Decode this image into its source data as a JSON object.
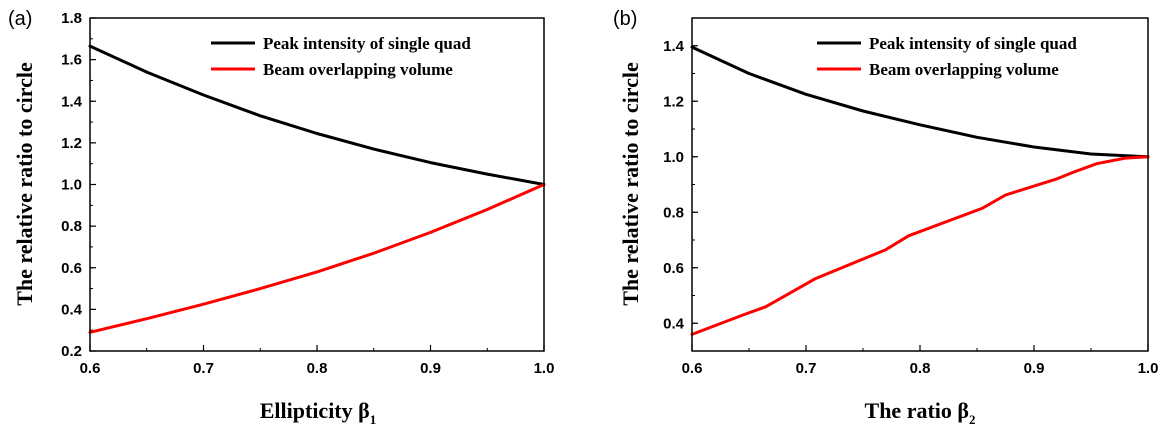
{
  "chart_data": [
    {
      "panel_label": "(a)",
      "type": "line",
      "xlabel": "Ellipticity β",
      "xlabel_sub": "1",
      "ylabel": "The relative ratio to circle",
      "xlim": [
        0.6,
        1.0
      ],
      "ylim": [
        0.2,
        1.8
      ],
      "xticks": [
        "0.6",
        "0.7",
        "0.8",
        "0.9",
        "1.0"
      ],
      "yticks": [
        "0.2",
        "0.4",
        "0.6",
        "0.8",
        "1.0",
        "1.2",
        "1.4",
        "1.6",
        "1.8"
      ],
      "legend_position": "top-right",
      "grid": false,
      "series": [
        {
          "name": "Peak intensity of single quad",
          "color": "#000000",
          "x": [
            0.6,
            0.65,
            0.7,
            0.75,
            0.8,
            0.85,
            0.9,
            0.95,
            1.0
          ],
          "y": [
            1.665,
            1.54,
            1.43,
            1.33,
            1.245,
            1.17,
            1.105,
            1.05,
            1.0
          ]
        },
        {
          "name": "Beam overlapping volume",
          "color": "#ff0000",
          "x": [
            0.6,
            0.65,
            0.7,
            0.75,
            0.8,
            0.85,
            0.9,
            0.95,
            1.0
          ],
          "y": [
            0.29,
            0.355,
            0.425,
            0.5,
            0.58,
            0.67,
            0.77,
            0.88,
            1.0
          ]
        }
      ]
    },
    {
      "panel_label": "(b)",
      "type": "line",
      "xlabel": "The ratio β",
      "xlabel_sub": "2",
      "ylabel": "The relative ratio to circle",
      "xlim": [
        0.6,
        1.0
      ],
      "ylim": [
        0.3,
        1.5
      ],
      "xticks": [
        "0.6",
        "0.7",
        "0.8",
        "0.9",
        "1.0"
      ],
      "yticks": [
        "0.4",
        "0.6",
        "0.8",
        "1.0",
        "1.2",
        "1.4"
      ],
      "ytick_values": [
        0.4,
        0.6,
        0.8,
        1.0,
        1.2,
        1.4
      ],
      "legend_position": "top-right",
      "grid": false,
      "series": [
        {
          "name": "Peak intensity of single quad",
          "color": "#000000",
          "x": [
            0.6,
            0.65,
            0.7,
            0.75,
            0.8,
            0.85,
            0.9,
            0.95,
            1.0
          ],
          "y": [
            1.395,
            1.3,
            1.225,
            1.165,
            1.115,
            1.07,
            1.035,
            1.01,
            1.0
          ]
        },
        {
          "name": "Beam overlapping volume",
          "color": "#ff0000",
          "x": [
            0.6,
            0.645,
            0.665,
            0.708,
            0.77,
            0.79,
            0.855,
            0.875,
            0.92,
            0.935,
            0.955,
            0.98,
            1.0
          ],
          "y": [
            0.36,
            0.43,
            0.46,
            0.56,
            0.665,
            0.715,
            0.815,
            0.862,
            0.92,
            0.945,
            0.975,
            0.995,
            1.0
          ]
        }
      ]
    }
  ]
}
